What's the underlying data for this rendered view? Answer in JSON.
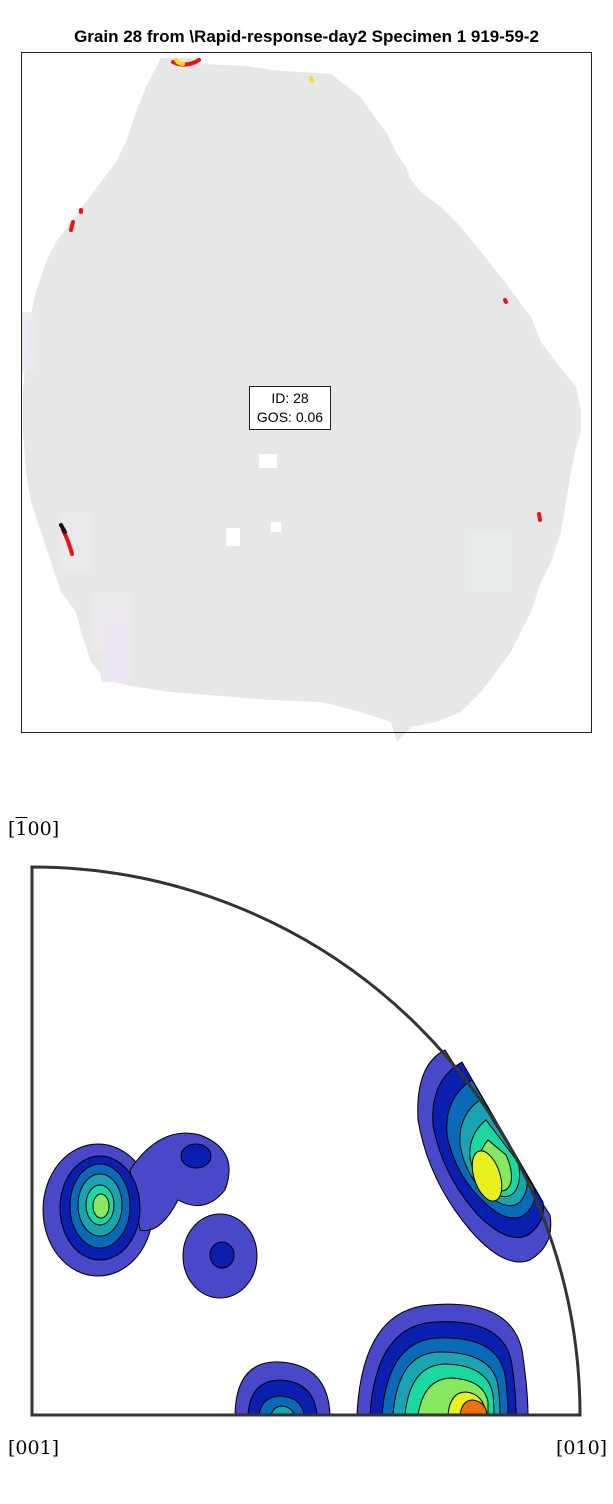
{
  "figure": {
    "title": "Grain 28 from \\Rapid-response-day2 Specimen 1 919-59-2",
    "grain_label": {
      "id_line": "ID: 28",
      "gos_line": "GOS: 0.06"
    }
  },
  "pole_figure": {
    "labels": {
      "top": "[100]",
      "bottom_left": "[001]",
      "bottom_right": "[010]"
    },
    "top_label_overbar_digit": "1",
    "contour_colors": [
      "#4848c8",
      "#0a1fb0",
      "#0a6ab8",
      "#1aa3b0",
      "#19d9a0",
      "#86e860",
      "#e8f020",
      "#f07010"
    ]
  }
}
